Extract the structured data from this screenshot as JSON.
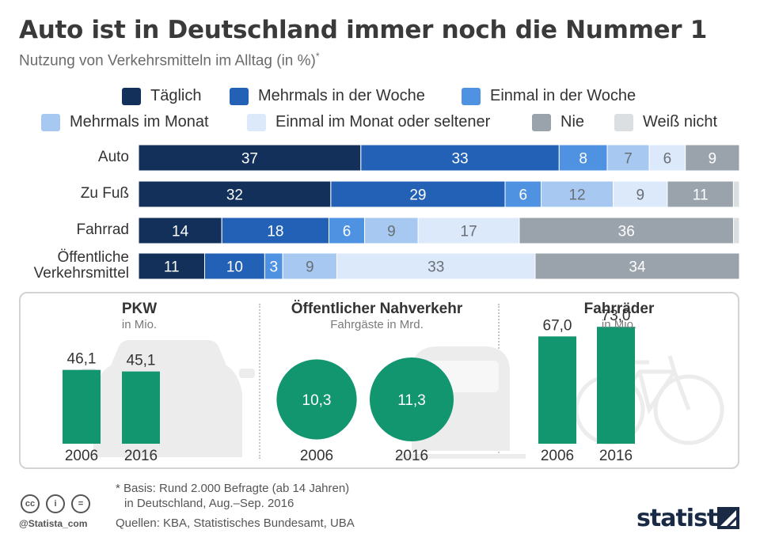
{
  "title": "Auto ist in Deutschland immer noch die Nummer 1",
  "subtitle": "Nutzung von Verkehrsmitteln im Alltag (in %)",
  "subtitle_mark": "*",
  "legend": [
    {
      "label": "Täglich",
      "color": "#13305a"
    },
    {
      "label": "Mehrmals in der Woche",
      "color": "#2261b6"
    },
    {
      "label": "Einmal in der Woche",
      "color": "#4f92e2"
    },
    {
      "label": "Mehrmals im Monat",
      "color": "#a6c8f1"
    },
    {
      "label": "Einmal im Monat oder seltener",
      "color": "#dce9fb"
    },
    {
      "label": "Nie",
      "color": "#9aa3ab"
    },
    {
      "label": "Weiß nicht",
      "color": "#dcdfe2"
    }
  ],
  "chart_data": [
    {
      "type": "bar",
      "orientation": "horizontal-stacked",
      "unit": "%",
      "categories": [
        "Auto",
        "Zu Fuß",
        "Fahrrad",
        "Öffentliche Verkehrsmittel"
      ],
      "series": [
        {
          "name": "Täglich",
          "values": [
            37,
            32,
            14,
            11
          ]
        },
        {
          "name": "Mehrmals in der Woche",
          "values": [
            33,
            29,
            18,
            10
          ]
        },
        {
          "name": "Einmal in der Woche",
          "values": [
            8,
            6,
            6,
            3
          ]
        },
        {
          "name": "Mehrmals im Monat",
          "values": [
            7,
            12,
            9,
            9
          ]
        },
        {
          "name": "Einmal im Monat oder seltener",
          "values": [
            6,
            9,
            17,
            33
          ]
        },
        {
          "name": "Nie",
          "values": [
            9,
            11,
            36,
            34
          ]
        },
        {
          "name": "Weiß nicht",
          "values": [
            0,
            1,
            1,
            0
          ]
        }
      ],
      "hidden_labels": [
        "Weiß nicht"
      ]
    },
    {
      "type": "bar",
      "title": "PKW",
      "subtitle": "in Mio.",
      "categories": [
        "2006",
        "2016"
      ],
      "values": [
        46.1,
        45.1
      ],
      "value_labels": [
        "46,1",
        "45,1"
      ],
      "color": "#12966f",
      "scale_max": 80
    },
    {
      "type": "bubble",
      "title": "Öffentlicher Nahverkehr",
      "subtitle": "Fahrgäste in Mrd.",
      "categories": [
        "2006",
        "2016"
      ],
      "values": [
        10.3,
        11.3
      ],
      "value_labels": [
        "10,3",
        "11,3"
      ],
      "color": "#12966f"
    },
    {
      "type": "bar",
      "title": "Fahrräder",
      "subtitle": "in Mio.",
      "categories": [
        "2006",
        "2016"
      ],
      "values": [
        67.0,
        73.0
      ],
      "value_labels": [
        "67,0",
        "73,0"
      ],
      "color": "#12966f",
      "scale_max": 80
    }
  ],
  "footnote_line1": "* Basis: Rund 2.000 Befragte (ab 14 Jahren)",
  "footnote_line2": "in Deutschland, Aug.–Sep. 2016",
  "sources": "Quellen: KBA, Statistisches Bundesamt, UBA",
  "handle": "@Statista_com",
  "license_icons": [
    "cc-icon",
    "by-icon",
    "nd-icon"
  ],
  "cc_glyphs": [
    "cc",
    "i",
    "="
  ],
  "brand": "statista",
  "ghost_color": "#ececec"
}
